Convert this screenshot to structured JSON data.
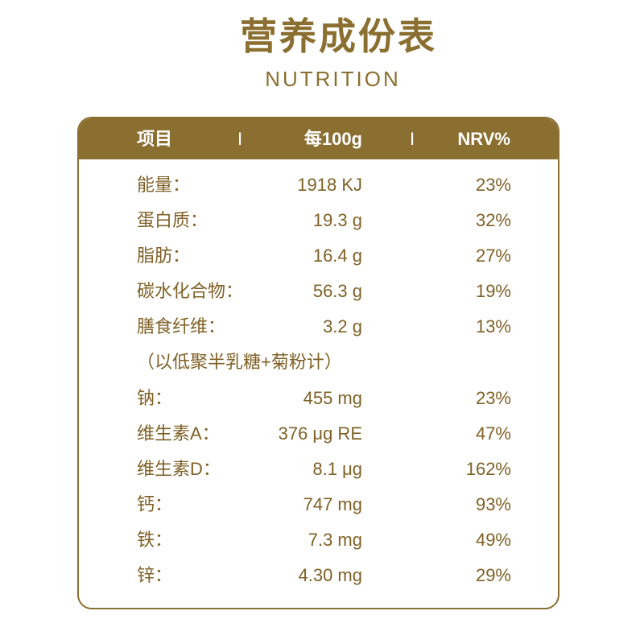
{
  "title": "营养成份表",
  "subtitle": "NUTRITION",
  "colors": {
    "accent_gold": "#8B6F30",
    "text_brown": "#806126",
    "header_text": "#FFFFFF",
    "background": "#FFFFFF"
  },
  "table": {
    "header": {
      "item": "项目",
      "separator_1": "I",
      "per_100g": "每100g",
      "separator_2": "I",
      "nrv": "NRV%"
    },
    "rows": [
      {
        "label": "能量：",
        "amount": "1918 KJ",
        "nrv": "23%"
      },
      {
        "label": "蛋白质：",
        "amount": "19.3 g",
        "nrv": "32%"
      },
      {
        "label": "脂肪：",
        "amount": "16.4 g",
        "nrv": "27%"
      },
      {
        "label": "碳水化合物：",
        "amount": "56.3 g",
        "nrv": "19%"
      },
      {
        "label": "膳食纤维：",
        "amount": "3.2 g",
        "nrv": "13%"
      },
      {
        "label": "（以低聚半乳糖+菊粉计）"
      },
      {
        "label": "钠：",
        "amount": "455 mg",
        "nrv": "23%"
      },
      {
        "label": "维生素A：",
        "amount": "376 μg RE",
        "nrv": "47%"
      },
      {
        "label": "维生素D：",
        "amount": "8.1 μg",
        "nrv": "162%"
      },
      {
        "label": "钙：",
        "amount": "747 mg",
        "nrv": "93%"
      },
      {
        "label": "铁：",
        "amount": "7.3 mg",
        "nrv": "49%"
      },
      {
        "label": "锌：",
        "amount": "4.30 mg",
        "nrv": "29%"
      }
    ]
  }
}
